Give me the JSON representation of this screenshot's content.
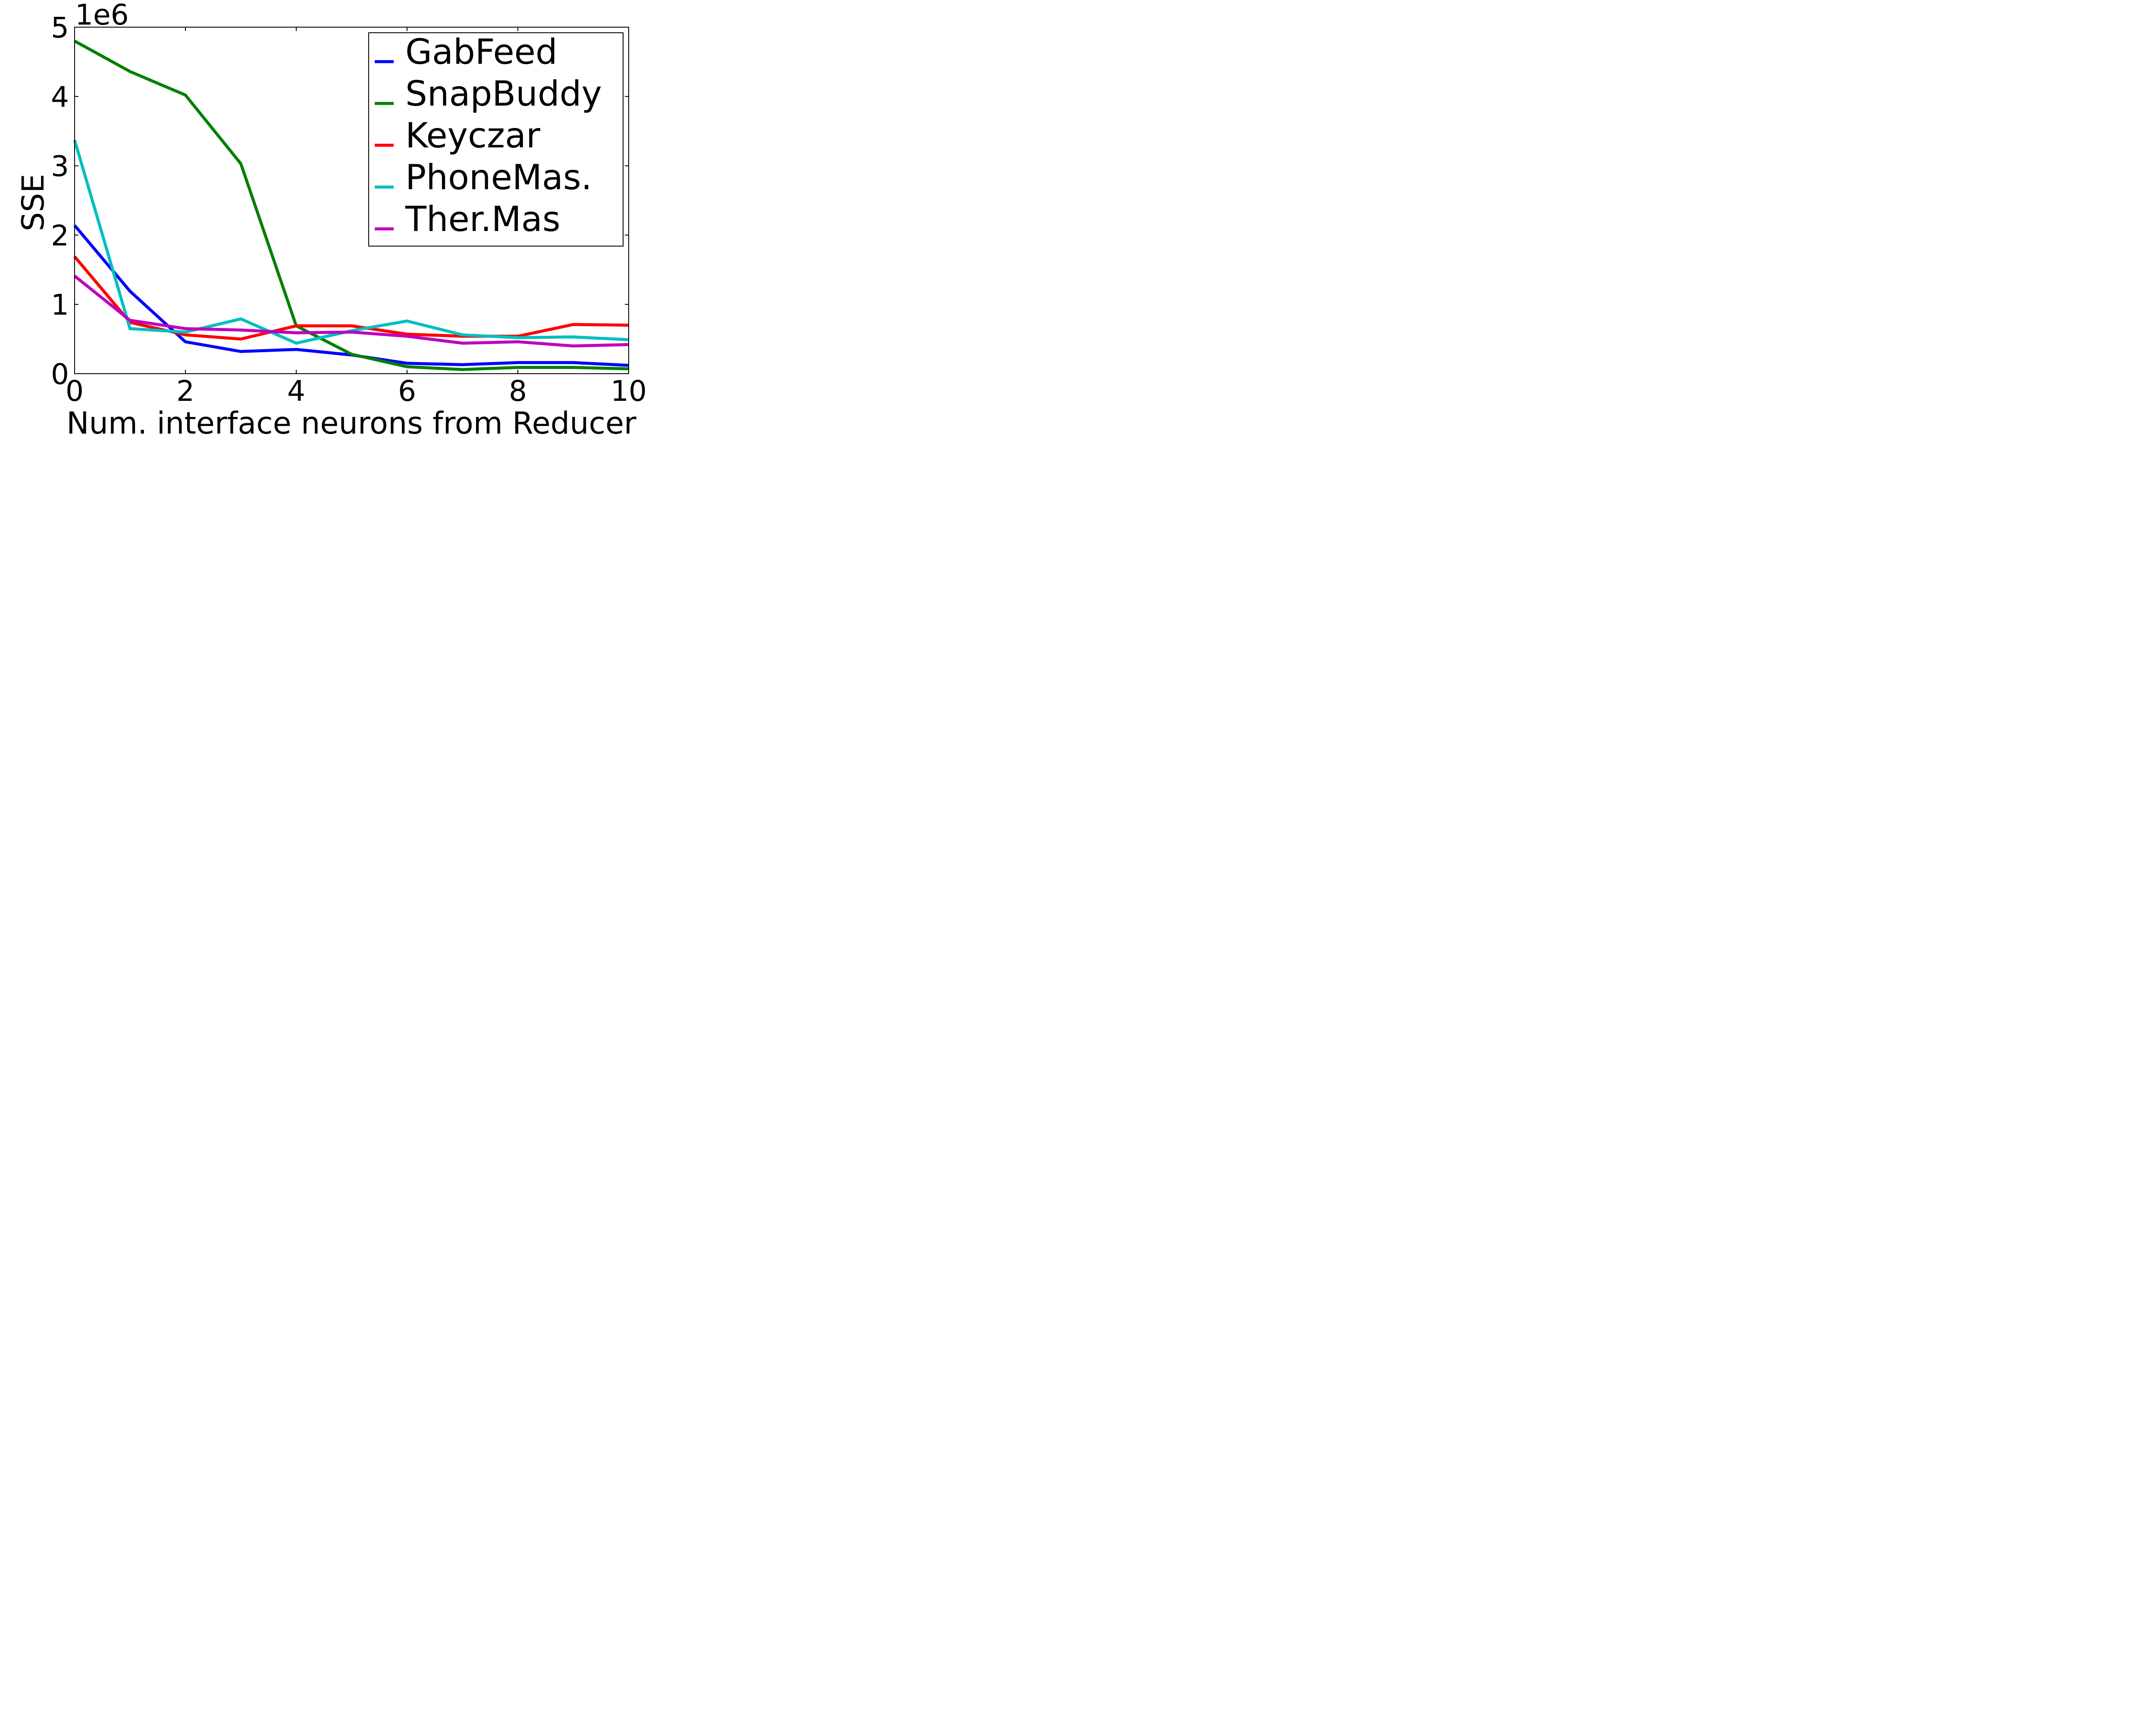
{
  "chart_data": {
    "type": "line",
    "title": "",
    "xlabel": "Num. interface neurons from Reducer",
    "ylabel": "SSE",
    "y_offset_label": "1e6",
    "xlim": [
      0,
      10
    ],
    "ylim": [
      0,
      5000000
    ],
    "x_ticks": [
      0,
      2,
      4,
      6,
      8,
      10
    ],
    "y_ticks": [
      0,
      1000000,
      2000000,
      3000000,
      4000000,
      5000000
    ],
    "x_tick_labels": [
      "0",
      "2",
      "4",
      "6",
      "8",
      "10"
    ],
    "y_tick_labels": [
      "0",
      "1",
      "2",
      "3",
      "4",
      "5"
    ],
    "grid": false,
    "legend_position": "top-right",
    "x": [
      0,
      1,
      2,
      3,
      4,
      5,
      6,
      7,
      8,
      9,
      10
    ],
    "series": [
      {
        "name": "GabFeed",
        "color": "#0000ff",
        "values": [
          2140000,
          1190000,
          460000,
          320000,
          350000,
          270000,
          150000,
          130000,
          160000,
          160000,
          120000
        ]
      },
      {
        "name": "SnapBuddy",
        "color": "#008000",
        "values": [
          4800000,
          4360000,
          4020000,
          3030000,
          690000,
          280000,
          100000,
          60000,
          90000,
          90000,
          70000
        ]
      },
      {
        "name": "Keyczar",
        "color": "#ff0000",
        "values": [
          1690000,
          740000,
          560000,
          500000,
          690000,
          690000,
          570000,
          540000,
          540000,
          710000,
          700000
        ]
      },
      {
        "name": "PhoneMas.",
        "color": "#00bfbf",
        "values": [
          3370000,
          650000,
          600000,
          790000,
          440000,
          620000,
          760000,
          560000,
          520000,
          530000,
          490000
        ]
      },
      {
        "name": "Ther.Mas",
        "color": "#bf00bf",
        "values": [
          1410000,
          770000,
          650000,
          630000,
          590000,
          600000,
          540000,
          440000,
          460000,
          400000,
          420000
        ]
      }
    ]
  }
}
